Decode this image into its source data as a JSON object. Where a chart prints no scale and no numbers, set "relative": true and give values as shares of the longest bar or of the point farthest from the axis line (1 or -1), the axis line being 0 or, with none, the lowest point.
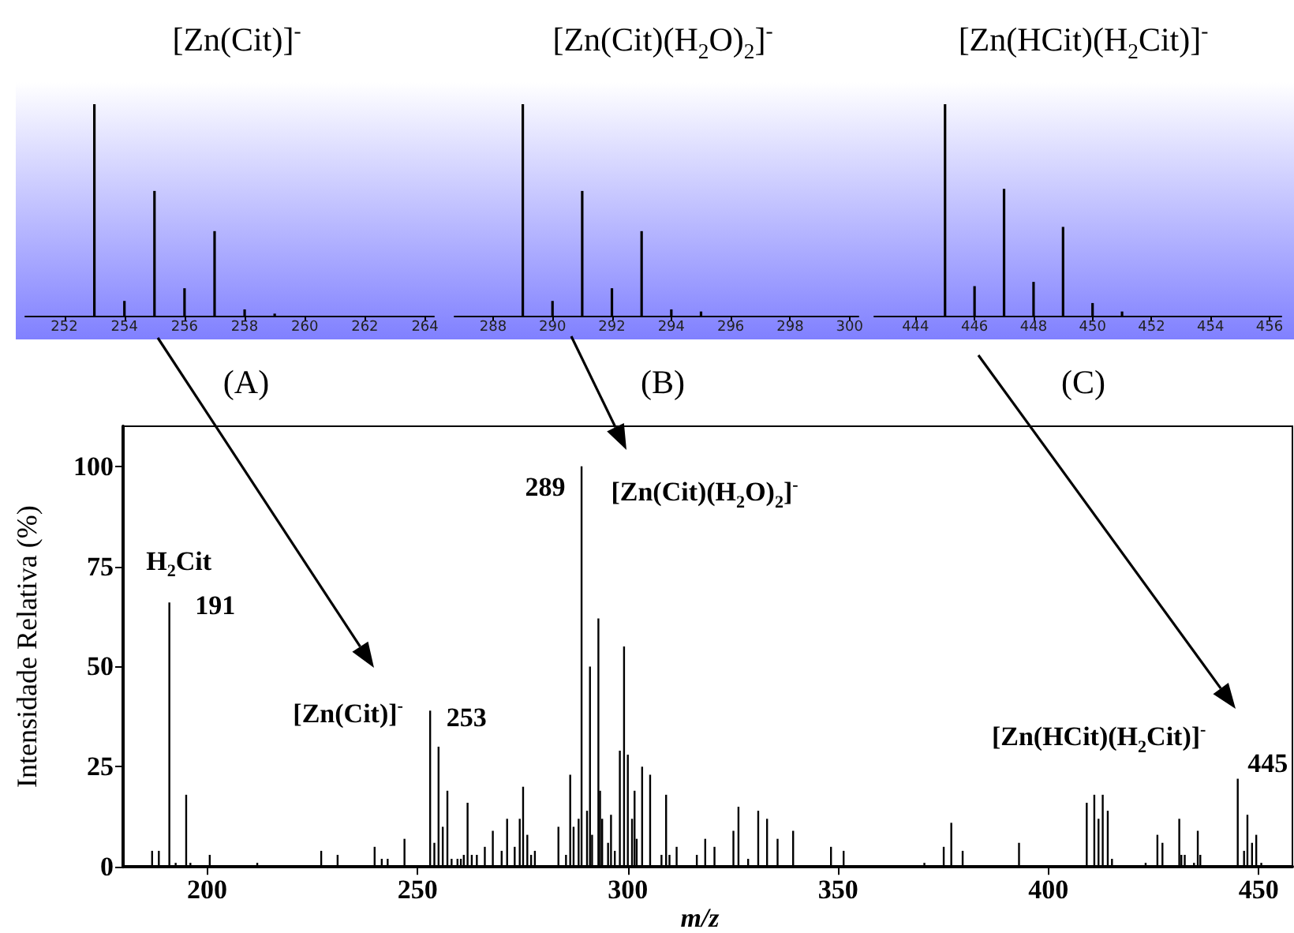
{
  "chart_data": [
    {
      "type": "bar",
      "relative": true,
      "title": "[Zn(Cit)]$^{-}$",
      "annotations": [
        "(A)"
      ],
      "color": "#000000",
      "xlim": [
        250.7,
        264.3
      ],
      "xticks": [
        252,
        254,
        256,
        258,
        260,
        262,
        264
      ],
      "x": [
        253,
        254,
        255,
        256,
        257,
        258,
        259
      ],
      "values": [
        1,
        0.07,
        0.59,
        0.13,
        0.4,
        0.03,
        0.01
      ]
    },
    {
      "type": "bar",
      "relative": true,
      "title": "[Zn(Cit)(H$_{2}$O)$_{2}$]$^{-}$",
      "annotations": [
        "(B)"
      ],
      "color": "#000000",
      "xlim": [
        286.7,
        300.3
      ],
      "xticks": [
        288,
        290,
        292,
        294,
        296,
        298,
        300
      ],
      "x": [
        289,
        290,
        291,
        292,
        293,
        294,
        295
      ],
      "values": [
        1,
        0.07,
        0.59,
        0.13,
        0.4,
        0.03,
        0.02
      ]
    },
    {
      "type": "bar",
      "relative": true,
      "title": "[Zn(HCit)(H$_{2}$Cit)]$^{-}$",
      "annotations": [
        "(C)"
      ],
      "color": "#000000",
      "xlim": [
        442.6,
        456.4
      ],
      "xticks": [
        444,
        446,
        448,
        450,
        452,
        454,
        456
      ],
      "x": [
        445,
        446,
        447,
        448,
        449,
        450,
        451
      ],
      "values": [
        1,
        0.14,
        0.6,
        0.16,
        0.42,
        0.06,
        0.02
      ]
    },
    {
      "type": "bar",
      "color": "#000000",
      "xlabel": "m/z",
      "ylabel": "Intensidade Relativa (%)",
      "xlim": [
        180,
        458
      ],
      "xticks": [
        200,
        250,
        300,
        350,
        400,
        450
      ],
      "ylim": [
        0,
        110
      ],
      "yticks": [
        0,
        25,
        50,
        75,
        100
      ],
      "annotations": [
        {
          "text": "H$_{2}$Cit",
          "x": 191,
          "y": 66
        },
        {
          "text": "191",
          "x": 191,
          "y": 66
        },
        {
          "text": "[Zn(Cit)]$^{-}$",
          "x": 253,
          "y": 39
        },
        {
          "text": "253",
          "x": 253,
          "y": 39
        },
        {
          "text": "289",
          "x": 289,
          "y": 100
        },
        {
          "text": "[Zn(Cit)(H$_{2}$O)$_{2}$]$^{-}$",
          "x": 289,
          "y": 100
        },
        {
          "text": "[Zn(HCit)(H$_{2}$Cit)]$^{-}$",
          "x": 445,
          "y": 22
        },
        {
          "text": "445",
          "x": 445,
          "y": 22
        }
      ],
      "x": [
        186.9,
        188.5,
        191,
        192.5,
        195,
        196,
        200.6,
        211.9,
        227.1,
        231,
        239.8,
        241.5,
        242.9,
        246.9,
        253,
        254,
        255,
        256,
        257.1,
        258.1,
        259.5,
        260.3,
        261,
        261.9,
        262.9,
        264.1,
        266,
        267.9,
        270,
        271.3,
        273.1,
        274.3,
        275.1,
        276.1,
        277,
        277.9,
        283.5,
        285.3,
        286.3,
        287.1,
        288.3,
        289,
        290.3,
        291,
        291.5,
        293,
        293.4,
        293.9,
        295.3,
        296,
        296.9,
        298.1,
        299.1,
        300,
        301,
        301.6,
        302.1,
        303.4,
        305.3,
        308,
        309.1,
        309.9,
        311.6,
        316.4,
        318.4,
        320.6,
        325.1,
        326.3,
        328.6,
        331,
        333.1,
        335.6,
        339.3,
        348.3,
        351.3,
        370.5,
        375.1,
        376.9,
        379.6,
        393,
        409.1,
        410.9,
        411.9,
        412.9,
        414.1,
        415.1,
        423.1,
        425.9,
        427.1,
        431.1,
        431.6,
        432.4,
        434.6,
        435.5,
        436.1,
        445,
        446.5,
        447.3,
        448.4,
        449.4,
        450.6
      ],
      "values": [
        4,
        4,
        66,
        1,
        18,
        1,
        3,
        1,
        4,
        3,
        5,
        2,
        2,
        7,
        39,
        6,
        30,
        10,
        19,
        2,
        2,
        2,
        3,
        16,
        3,
        3,
        5,
        9,
        4,
        12,
        5,
        12,
        20,
        8,
        3,
        4,
        10,
        3,
        23,
        10,
        12,
        100,
        14,
        50,
        8,
        62,
        19,
        12,
        6,
        13,
        4,
        29,
        55,
        28,
        12,
        19,
        7,
        25,
        23,
        3,
        18,
        3,
        5,
        3,
        7,
        5,
        9,
        15,
        2,
        14,
        12,
        7,
        9,
        5,
        4,
        1,
        5,
        11,
        4,
        6,
        16,
        18,
        12,
        18,
        14,
        2,
        1,
        8,
        6,
        12,
        3,
        3,
        1,
        9,
        3,
        22,
        4,
        13,
        6,
        8,
        1
      ]
    }
  ]
}
